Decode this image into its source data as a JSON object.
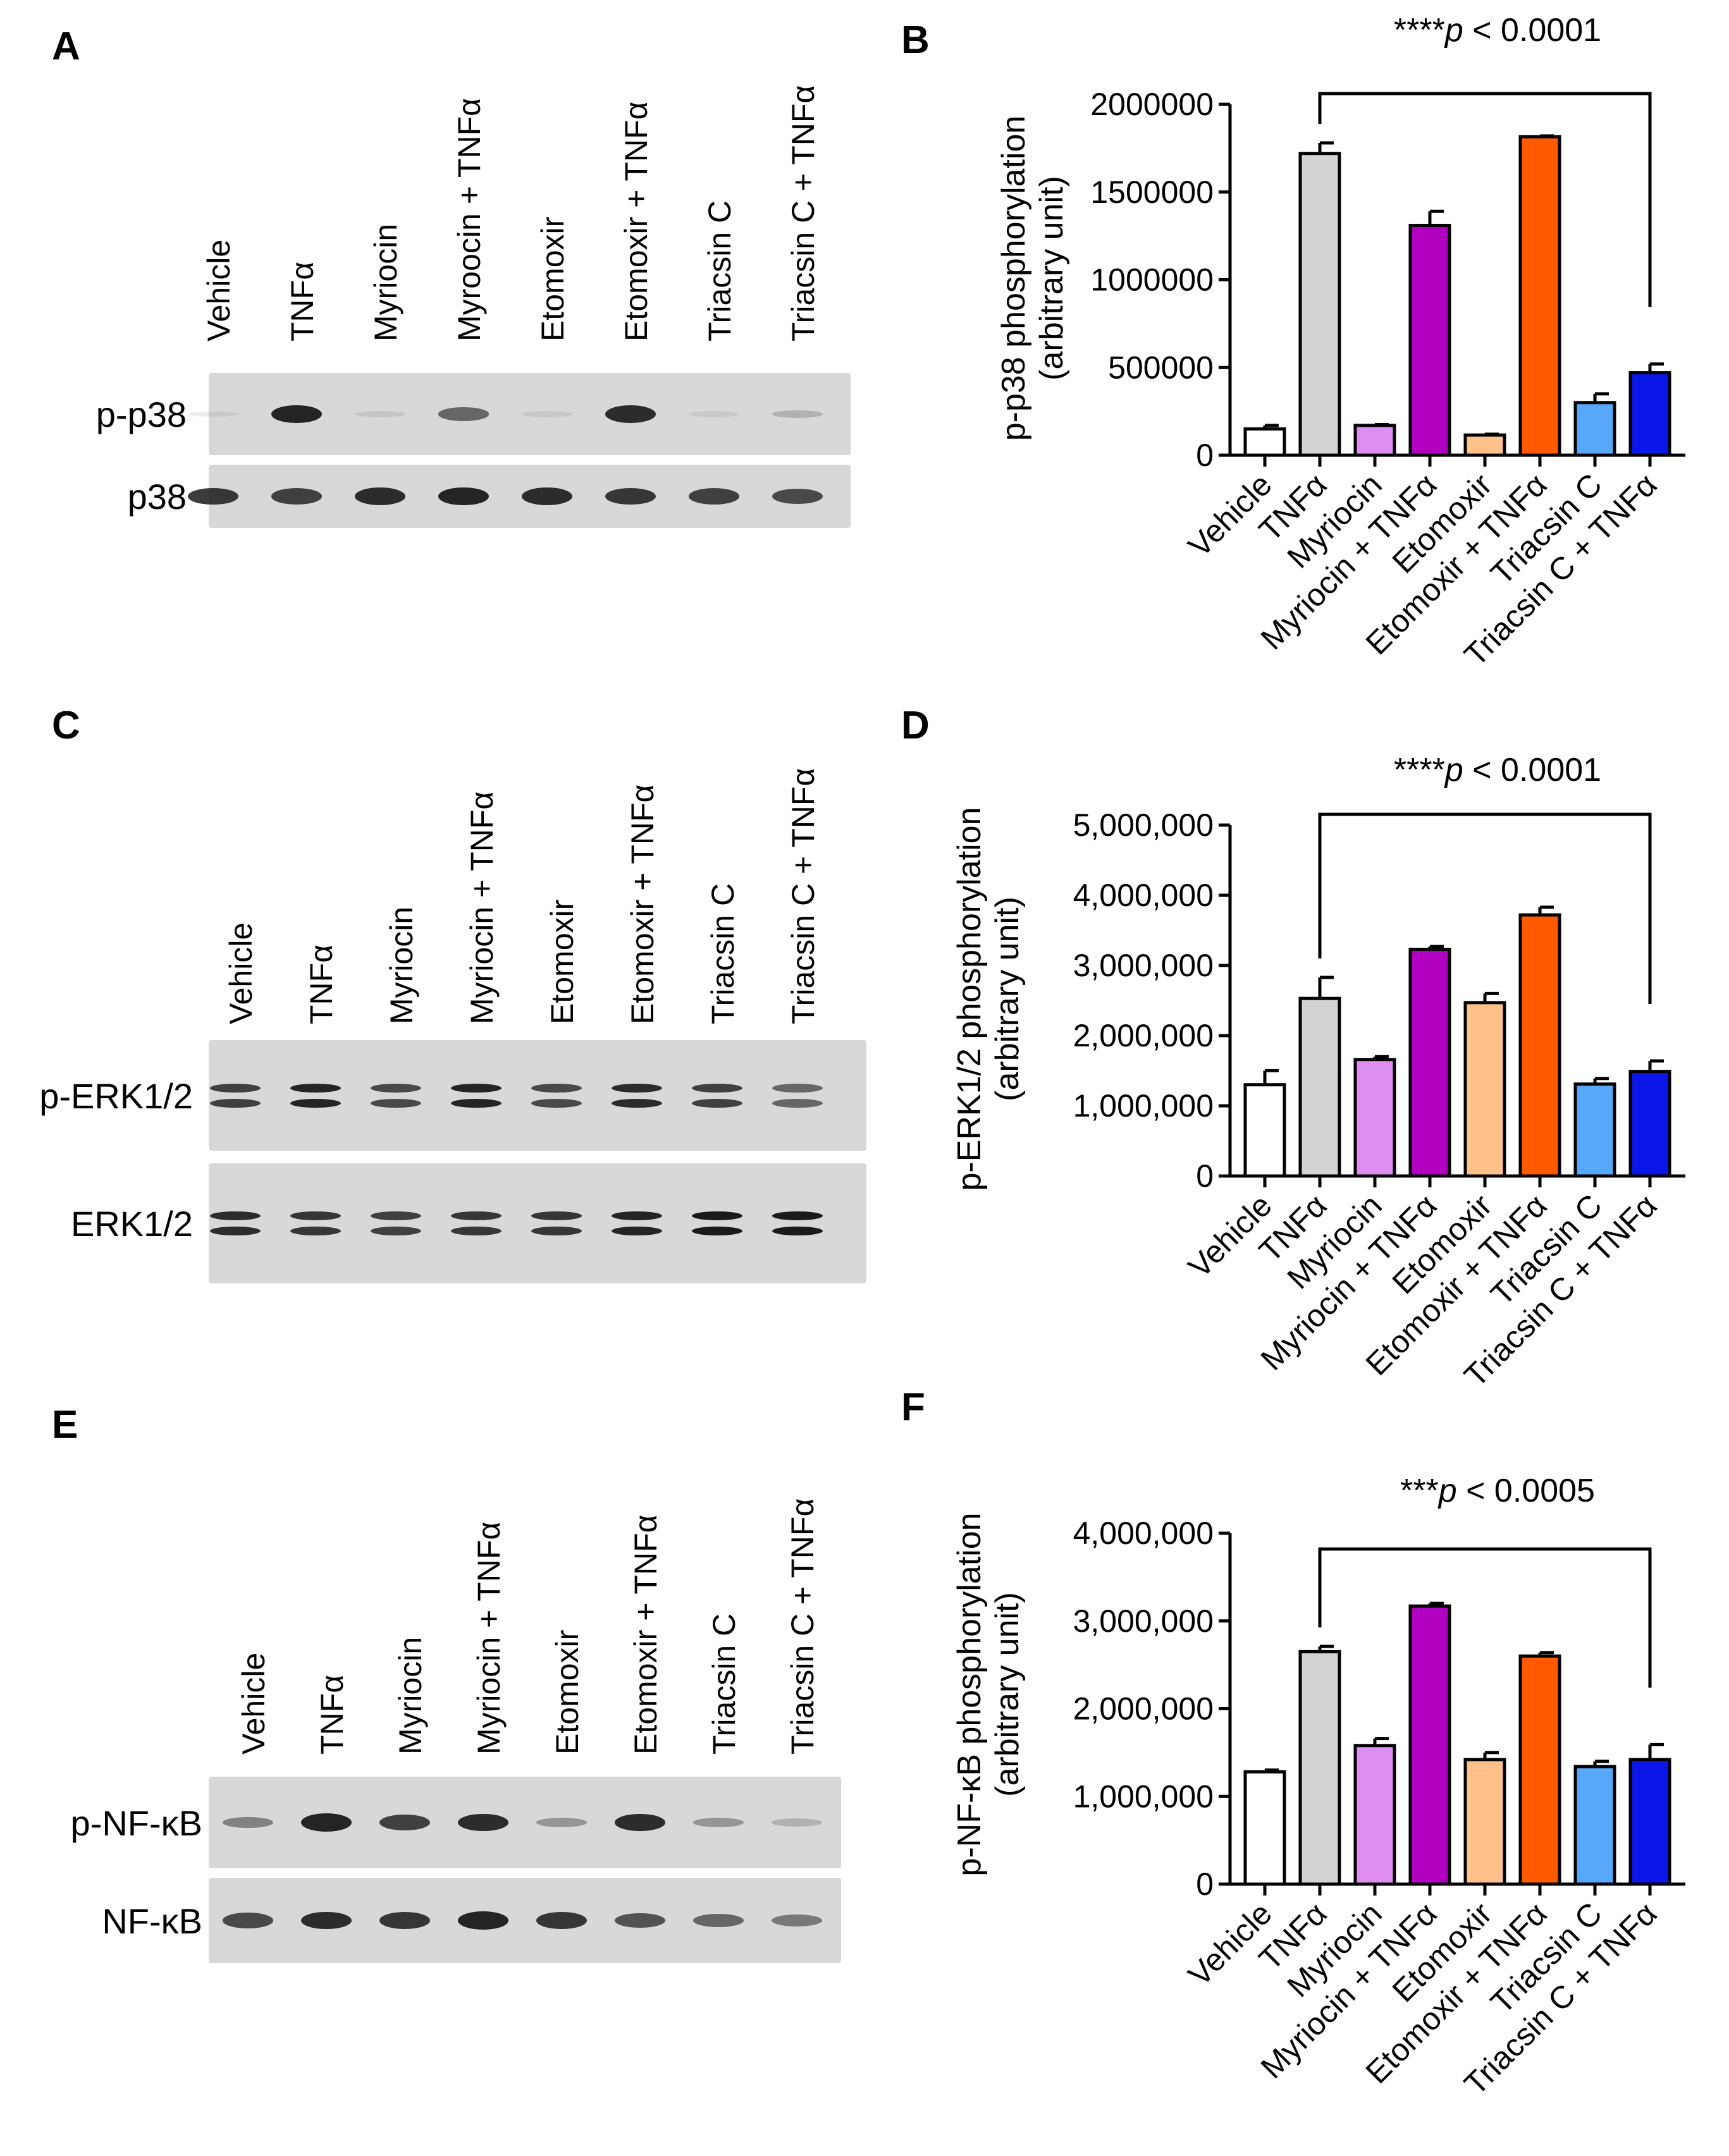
{
  "panels": {
    "a": {
      "letter": "A"
    },
    "b": {
      "letter": "B"
    },
    "c": {
      "letter": "C"
    },
    "d": {
      "letter": "D"
    },
    "e": {
      "letter": "E"
    },
    "f": {
      "letter": "F"
    }
  },
  "blots": [
    {
      "id": "A",
      "lanes": [
        "Vehicle",
        "TNFα",
        "Myriocin",
        "Myroocin + TNFα",
        "Etomoxir",
        "Etomoxir + TNFα",
        "Triacsin C",
        "Triacsin C + TNFα"
      ],
      "rows": [
        {
          "label": "p-p38",
          "intensity": [
            0.03,
            0.95,
            0.1,
            0.6,
            0.05,
            0.9,
            0.08,
            0.2
          ]
        },
        {
          "label": "p38",
          "intensity": [
            0.85,
            0.8,
            0.9,
            0.95,
            0.9,
            0.85,
            0.8,
            0.75
          ]
        }
      ]
    },
    {
      "id": "C",
      "lanes": [
        "Vehicle",
        "TNFα",
        "Myriocin",
        "Myriocin + TNFα",
        "Etomoxir",
        "Etomoxir + TNFα",
        "Triacsin C",
        "Triacsin C + TNFα"
      ],
      "rows": [
        {
          "label": "p-ERK1/2",
          "intensity": [
            0.8,
            0.95,
            0.75,
            0.95,
            0.75,
            0.9,
            0.8,
            0.6
          ]
        },
        {
          "label": "ERK1/2",
          "intensity": [
            0.9,
            0.85,
            0.8,
            0.85,
            0.85,
            0.95,
            1.0,
            1.0
          ]
        }
      ]
    },
    {
      "id": "E",
      "lanes": [
        "Vehicle",
        "TNFα",
        "Myriocin",
        "Myriocin + TNFα",
        "Etomoxir",
        "Etomoxir + TNFα",
        "Triacsin C",
        "Triacsin C + TNFα"
      ],
      "rows": [
        {
          "label": "p-NF-κB",
          "intensity": [
            0.45,
            0.95,
            0.8,
            0.9,
            0.35,
            0.9,
            0.35,
            0.2
          ]
        },
        {
          "label": "NF-κB",
          "intensity": [
            0.75,
            0.9,
            0.85,
            0.95,
            0.85,
            0.7,
            0.6,
            0.5
          ]
        }
      ]
    }
  ],
  "chart_data": [
    {
      "id": "B",
      "type": "bar",
      "categories": [
        "Vehicle",
        "TNFα",
        "Myriocin",
        "Myriocin + TNFα",
        "Etomoxir",
        "Etomoxir + TNFα",
        "Triacsin C",
        "Triacsin C + TNFα"
      ],
      "values": [
        150000,
        1720000,
        170000,
        1310000,
        115000,
        1815000,
        300000,
        470000
      ],
      "errors": [
        20000,
        60000,
        5000,
        80000,
        5000,
        5000,
        50000,
        50000
      ],
      "colors": [
        "#ffffff",
        "#d3d3d3",
        "#de8ef0",
        "#b100c0",
        "#ffc18a",
        "#ff5a00",
        "#57a8f8",
        "#0a17e8"
      ],
      "ylabel": "p-p38 phosphorylation\n(arbitrary unit)",
      "yticks": [
        0,
        500000,
        1000000,
        1500000,
        2000000
      ],
      "ytick_labels": [
        "0",
        "500000",
        "1000000",
        "1500000",
        "2000000"
      ],
      "ylim": [
        0,
        2000000
      ],
      "annotation": {
        "stars": "****",
        "p": "p",
        "rest": " < 0.0001",
        "from": 1,
        "to": 7
      }
    },
    {
      "id": "D",
      "type": "bar",
      "categories": [
        "Vehicle",
        "TNFα",
        "Myriocin",
        "Myriocin + TNFα",
        "Etomoxir",
        "Etomoxir + TNFα",
        "Triacsin C",
        "Triacsin C + TNFα"
      ],
      "values": [
        1300000,
        2530000,
        1660000,
        3230000,
        2470000,
        3720000,
        1310000,
        1490000
      ],
      "errors": [
        200000,
        300000,
        40000,
        40000,
        130000,
        110000,
        80000,
        150000
      ],
      "colors": [
        "#ffffff",
        "#d3d3d3",
        "#de8ef0",
        "#b100c0",
        "#ffc18a",
        "#ff5a00",
        "#57a8f8",
        "#0a17e8"
      ],
      "ylabel": "p-ERK1/2 phosphorylation\n(arbitrary unit)",
      "yticks": [
        0,
        1000000,
        2000000,
        3000000,
        4000000,
        5000000
      ],
      "ytick_labels": [
        "0",
        "1,000,000",
        "2,000,000",
        "3,000,000",
        "4,000,000",
        "5,000,000"
      ],
      "ylim": [
        0,
        5000000
      ],
      "annotation": {
        "stars": "****",
        "p": "p",
        "rest": " < 0.0001",
        "from": 1,
        "to": 7
      }
    },
    {
      "id": "F",
      "type": "bar",
      "categories": [
        "Vehicle",
        "TNFα",
        "Myriocin",
        "Myriocin + TNFα",
        "Etomoxir",
        "Etomoxir + TNFα",
        "Triacsin C",
        "Triacsin C + TNFα"
      ],
      "values": [
        1280000,
        2650000,
        1580000,
        3170000,
        1420000,
        2600000,
        1340000,
        1420000
      ],
      "errors": [
        20000,
        60000,
        80000,
        30000,
        80000,
        40000,
        60000,
        170000
      ],
      "colors": [
        "#ffffff",
        "#d3d3d3",
        "#de8ef0",
        "#b100c0",
        "#ffc18a",
        "#ff5a00",
        "#57a8f8",
        "#0a17e8"
      ],
      "ylabel": "p-NF-κB  phosphorylation\n(arbitrary unit)",
      "yticks": [
        0,
        1000000,
        2000000,
        3000000,
        4000000
      ],
      "ytick_labels": [
        "0",
        "1,000,000",
        "2,000,000",
        "3,000,000",
        "4,000,000"
      ],
      "ylim": [
        0,
        4000000
      ],
      "annotation": {
        "stars": "***",
        "p": "p",
        "rest": " < 0.0005",
        "from": 1,
        "to": 7
      }
    }
  ]
}
